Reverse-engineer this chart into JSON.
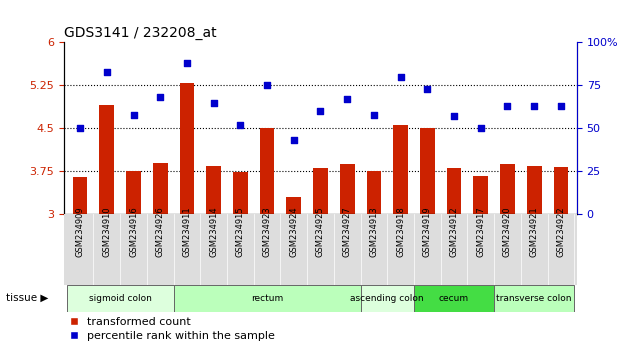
{
  "title": "GDS3141 / 232208_at",
  "samples": [
    "GSM234909",
    "GSM234910",
    "GSM234916",
    "GSM234926",
    "GSM234911",
    "GSM234914",
    "GSM234915",
    "GSM234923",
    "GSM234924",
    "GSM234925",
    "GSM234927",
    "GSM234913",
    "GSM234918",
    "GSM234919",
    "GSM234912",
    "GSM234917",
    "GSM234920",
    "GSM234921",
    "GSM234922"
  ],
  "bar_values": [
    3.65,
    4.9,
    3.75,
    3.9,
    5.3,
    3.85,
    3.73,
    4.5,
    3.3,
    3.8,
    3.87,
    3.75,
    4.55,
    4.5,
    3.8,
    3.67,
    3.87,
    3.85,
    3.82
  ],
  "dot_values": [
    50,
    83,
    58,
    68,
    88,
    65,
    52,
    75,
    43,
    60,
    67,
    58,
    80,
    73,
    57,
    50,
    63,
    63,
    63
  ],
  "bar_color": "#cc2200",
  "dot_color": "#0000cc",
  "ylim_left": [
    3.0,
    6.0
  ],
  "ylim_right": [
    0,
    100
  ],
  "yticks_left": [
    3.0,
    3.75,
    4.5,
    5.25,
    6.0
  ],
  "ytick_labels_left": [
    "3",
    "3.75",
    "4.5",
    "5.25",
    "6"
  ],
  "yticks_right": [
    0,
    25,
    50,
    75,
    100
  ],
  "ytick_labels_right": [
    "0",
    "25",
    "50",
    "75",
    "100%"
  ],
  "hlines": [
    3.75,
    4.5,
    5.25
  ],
  "tissue_groups": [
    {
      "label": "sigmoid colon",
      "start": 0,
      "end": 4,
      "color": "#ddffdd"
    },
    {
      "label": "rectum",
      "start": 4,
      "end": 11,
      "color": "#bbffbb"
    },
    {
      "label": "ascending colon",
      "start": 11,
      "end": 13,
      "color": "#ddffdd"
    },
    {
      "label": "cecum",
      "start": 13,
      "end": 16,
      "color": "#44dd44"
    },
    {
      "label": "transverse colon",
      "start": 16,
      "end": 19,
      "color": "#bbffbb"
    }
  ],
  "tissue_label": "tissue",
  "legend_bar": "transformed count",
  "legend_dot": "percentile rank within the sample",
  "bg_color": "#ffffff",
  "xtick_bg": "#dddddd",
  "tick_label_color_left": "#cc2200",
  "tick_label_color_right": "#0000cc"
}
